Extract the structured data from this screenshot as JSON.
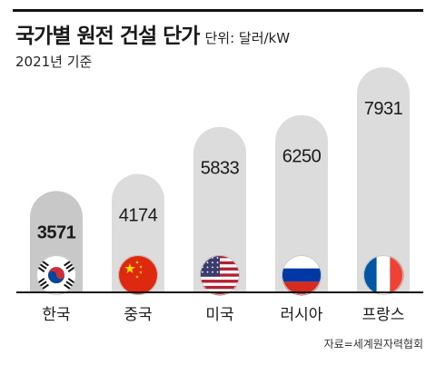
{
  "header": {
    "title": "국가별 원전 건설 단가",
    "unit": "단위: 달러/kW",
    "subtitle": "2021년 기준"
  },
  "footer": {
    "source": "자료=세계원자력협회"
  },
  "colors": {
    "bar": "#dcdcdc",
    "bar_highlight": "#c8c8c8",
    "axis": "#111111",
    "text": "#1a1a1a"
  },
  "chart_data": {
    "type": "bar",
    "title": "국가별 원전 건설 단가",
    "subtitle": "2021년 기준",
    "ylabel": "",
    "xlabel": "",
    "unit": "달러/kW",
    "categories": [
      "한국",
      "중국",
      "미국",
      "러시아",
      "프랑스"
    ],
    "values": [
      3571,
      4174,
      5833,
      6250,
      7931
    ],
    "value_labels": [
      "3571",
      "4174",
      "5833",
      "6250",
      "7931"
    ],
    "icons": [
      "korea-flag-icon",
      "china-flag-icon",
      "usa-flag-icon",
      "russia-flag-icon",
      "france-flag-icon"
    ],
    "highlight_index": 0,
    "ylim": [
      0,
      8000
    ],
    "grid": false,
    "legend": "none"
  }
}
